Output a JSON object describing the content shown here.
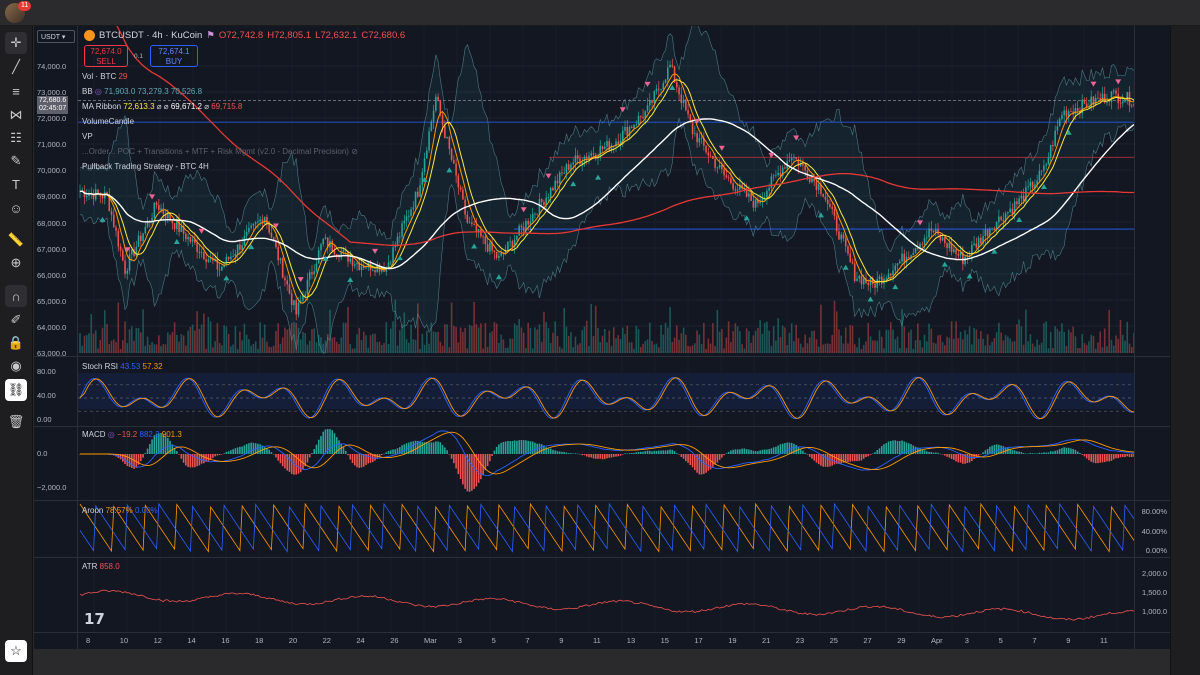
{
  "topbar": {
    "notification_count": "11"
  },
  "symbol": {
    "currency_selector": "USDT",
    "title": "BTCUSDT · 4h · KuCoin",
    "open": "O72,742.8",
    "high": "H72,805.1",
    "low": "L72,632.1",
    "close": "C72,680.6"
  },
  "trade": {
    "sell_price": "72,674.0",
    "sell_label": "SELL",
    "buy_price": "72,674.1",
    "buy_label": "BUY",
    "spread": "0.1"
  },
  "last_price": {
    "price": "72,680.6",
    "countdown": "02:45:07"
  },
  "legends": {
    "vol_name": "Vol · BTC",
    "vol_value": "29",
    "bb_name": "BB",
    "bb_basis": "71,903.0",
    "bb_upper": "73,279.3",
    "bb_lower": "70,526.8",
    "ma_name": "MA Ribbon",
    "ma_value1": "72,613.3",
    "ma_value2": "69,671.2",
    "ma_value3": "69,715.8",
    "volume_candle": "VolumeCandle",
    "vp": "VP",
    "obscured_indicator": "...Order... POC + Transitions + MTF + Risk Mgmt (v2.0 - Decimal Precision)",
    "strategy": "Pullback Trading Strategy - BTC 4H",
    "stoch_name": "Stoch RSI",
    "stoch_k": "43.53",
    "stoch_d": "57.32",
    "macd_name": "MACD",
    "macd_hist": "−19.2",
    "macd_line": "882.2",
    "macd_signal": "901.3",
    "aroon_name": "Aroon",
    "aroon_up": "78.57%",
    "aroon_down": "0.00%",
    "atr_name": "ATR",
    "atr_value": "858.0"
  },
  "price_scale": [
    "74,000.0",
    "73,000.0",
    "72,000.0",
    "71,000.0",
    "70,000.0",
    "69,000.0",
    "68,000.0",
    "67,000.0",
    "66,000.0",
    "65,000.0",
    "64,000.0",
    "63,000.0"
  ],
  "stoch_scale": [
    "80.00",
    "40.00",
    "0.00"
  ],
  "macd_scale": [
    "0.0",
    "−2,000.0"
  ],
  "aroon_scale": [
    "80.00%",
    "40.00%",
    "0.00%"
  ],
  "atr_scale": [
    "2,000.0",
    "1,500.0",
    "1,000.0"
  ],
  "time_axis": [
    "8",
    "10",
    "12",
    "14",
    "16",
    "18",
    "20",
    "22",
    "24",
    "26",
    "Mar",
    "3",
    "5",
    "7",
    "9",
    "11",
    "13",
    "15",
    "17",
    "19",
    "21",
    "23",
    "25",
    "27",
    "29",
    "Apr",
    "3",
    "5",
    "7",
    "9",
    "11"
  ],
  "colors": {
    "background": "#131722",
    "up": "#26a69a",
    "down": "#ef5350",
    "ma_fast": "#ff9800",
    "ma_mid": "#ffeb3b",
    "ma_slow": "#ffffff",
    "ma_red": "#e53935",
    "bb": "#4a7a86"
  },
  "icons": [
    "crosshair-icon",
    "trendline-icon",
    "fib-icon",
    "pattern-icon",
    "measure-icon",
    "brush-icon",
    "text-icon",
    "emoji-icon",
    "ruler-icon",
    "zoom-icon",
    "magnet-icon",
    "lock-drawings-icon",
    "lock-icon",
    "eye-icon",
    "link-icon",
    "trash-icon",
    "star-icon"
  ]
}
